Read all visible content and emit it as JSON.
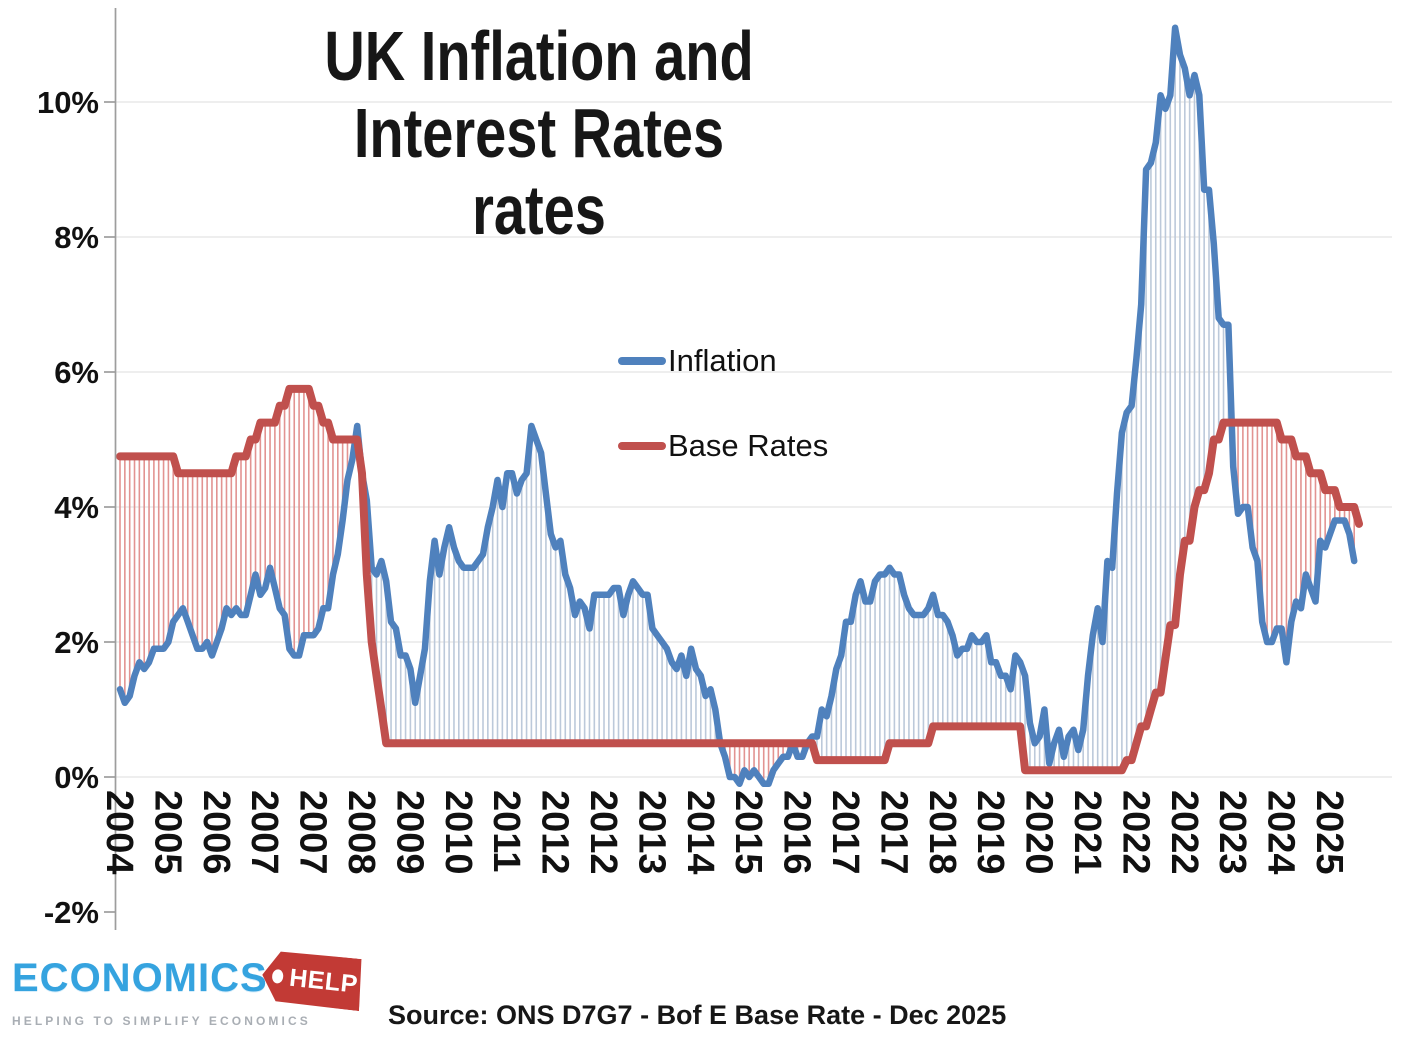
{
  "title": {
    "line1": "UK Inflation and",
    "line2": "Interest Rates rates"
  },
  "legend": [
    {
      "label": "Inflation",
      "color": "#4F81BD"
    },
    {
      "label": "Base Rates",
      "color": "#C0504D"
    }
  ],
  "source": "Source: ONS D7G7 - Bof E Base Rate - Dec 2025",
  "logo": {
    "brand": "ECONOMICS",
    "tag": "HELP",
    "tagline": "HELPING TO SIMPLIFY ECONOMICS"
  },
  "axes": {
    "y_ticks": [
      "10%",
      "8%",
      "6%",
      "4%",
      "2%",
      "0%",
      "-2%"
    ],
    "x_ticks": [
      "2004",
      "2005",
      "2006",
      "2007",
      "2007",
      "2008",
      "2009",
      "2010",
      "2011",
      "2012",
      "2012",
      "2013",
      "2014",
      "2015",
      "2016",
      "2017",
      "2017",
      "2018",
      "2019",
      "2020",
      "2021",
      "2022",
      "2022",
      "2023",
      "2024",
      "2025"
    ]
  },
  "chart_data": {
    "type": "line",
    "title": "UK Inflation and Interest Rates rates",
    "xlabel": "",
    "ylabel": "",
    "frequency": "monthly",
    "start_month": "2004-08",
    "end_month": "2025-12",
    "x_tick_interval_months": 10,
    "x_tick_labels": [
      "2004",
      "2005",
      "2006",
      "2007",
      "2007",
      "2008",
      "2009",
      "2010",
      "2011",
      "2012",
      "2012",
      "2013",
      "2014",
      "2015",
      "2016",
      "2017",
      "2017",
      "2018",
      "2019",
      "2020",
      "2021",
      "2022",
      "2022",
      "2023",
      "2024",
      "2025"
    ],
    "y_tick_values": [
      10,
      8,
      6,
      4,
      2,
      0,
      -2
    ],
    "gridline_values": [
      0,
      2,
      4,
      6,
      8,
      10
    ],
    "ylim": [
      -2,
      11.5
    ],
    "grid": true,
    "legend_position": "center-right",
    "fill_between": {
      "inflation_above_color": "#bcc9da",
      "base_above_color": "#e29391"
    },
    "series": [
      {
        "name": "Inflation",
        "color": "#4F81BD",
        "values": [
          1.3,
          1.1,
          1.2,
          1.5,
          1.7,
          1.6,
          1.7,
          1.9,
          1.9,
          1.9,
          2.0,
          2.3,
          2.4,
          2.5,
          2.3,
          2.1,
          1.9,
          1.9,
          2.0,
          1.8,
          2.0,
          2.2,
          2.5,
          2.4,
          2.5,
          2.4,
          2.4,
          2.7,
          3.0,
          2.7,
          2.8,
          3.1,
          2.8,
          2.5,
          2.4,
          1.9,
          1.8,
          1.8,
          2.1,
          2.1,
          2.1,
          2.2,
          2.5,
          2.5,
          3.0,
          3.3,
          3.8,
          4.4,
          4.7,
          5.2,
          4.5,
          4.1,
          3.1,
          3.0,
          3.2,
          2.9,
          2.3,
          2.2,
          1.8,
          1.8,
          1.6,
          1.1,
          1.5,
          1.9,
          2.9,
          3.5,
          3.0,
          3.4,
          3.7,
          3.4,
          3.2,
          3.1,
          3.1,
          3.1,
          3.2,
          3.3,
          3.7,
          4.0,
          4.4,
          4.0,
          4.5,
          4.5,
          4.2,
          4.4,
          4.5,
          5.2,
          5.0,
          4.8,
          4.2,
          3.6,
          3.4,
          3.5,
          3.0,
          2.8,
          2.4,
          2.6,
          2.5,
          2.2,
          2.7,
          2.7,
          2.7,
          2.7,
          2.8,
          2.8,
          2.4,
          2.7,
          2.9,
          2.8,
          2.7,
          2.7,
          2.2,
          2.1,
          2.0,
          1.9,
          1.7,
          1.6,
          1.8,
          1.5,
          1.9,
          1.6,
          1.5,
          1.2,
          1.3,
          1.0,
          0.5,
          0.3,
          0.0,
          0.0,
          -0.1,
          0.1,
          0.0,
          0.1,
          0.0,
          -0.1,
          -0.1,
          0.1,
          0.2,
          0.3,
          0.3,
          0.5,
          0.3,
          0.3,
          0.5,
          0.6,
          0.6,
          1.0,
          0.9,
          1.2,
          1.6,
          1.8,
          2.3,
          2.3,
          2.7,
          2.9,
          2.6,
          2.6,
          2.9,
          3.0,
          3.0,
          3.1,
          3.0,
          3.0,
          2.7,
          2.5,
          2.4,
          2.4,
          2.4,
          2.5,
          2.7,
          2.4,
          2.4,
          2.3,
          2.1,
          1.8,
          1.9,
          1.9,
          2.1,
          2.0,
          2.0,
          2.1,
          1.7,
          1.7,
          1.5,
          1.5,
          1.3,
          1.8,
          1.7,
          1.5,
          0.8,
          0.5,
          0.6,
          1.0,
          0.2,
          0.5,
          0.7,
          0.3,
          0.6,
          0.7,
          0.4,
          0.7,
          1.5,
          2.1,
          2.5,
          2.0,
          3.2,
          3.1,
          4.2,
          5.1,
          5.4,
          5.5,
          6.2,
          7.0,
          9.0,
          9.1,
          9.4,
          10.1,
          9.9,
          10.1,
          11.1,
          10.7,
          10.5,
          10.1,
          10.4,
          10.1,
          8.7,
          8.7,
          7.9,
          6.8,
          6.7,
          6.7,
          4.6,
          3.9,
          4.0,
          4.0,
          3.4,
          3.2,
          2.3,
          2.0,
          2.0,
          2.2,
          2.2,
          1.7,
          2.3,
          2.6,
          2.5,
          3.0,
          2.8,
          2.6,
          3.5,
          3.4,
          3.6,
          3.8,
          3.8,
          3.8,
          3.6,
          3.2
        ]
      },
      {
        "name": "Base Rates",
        "color": "#C0504D",
        "values": [
          4.75,
          4.75,
          4.75,
          4.75,
          4.75,
          4.75,
          4.75,
          4.75,
          4.75,
          4.75,
          4.75,
          4.75,
          4.5,
          4.5,
          4.5,
          4.5,
          4.5,
          4.5,
          4.5,
          4.5,
          4.5,
          4.5,
          4.5,
          4.5,
          4.75,
          4.75,
          4.75,
          5.0,
          5.0,
          5.25,
          5.25,
          5.25,
          5.25,
          5.5,
          5.5,
          5.75,
          5.75,
          5.75,
          5.75,
          5.75,
          5.5,
          5.5,
          5.25,
          5.25,
          5.0,
          5.0,
          5.0,
          5.0,
          5.0,
          5.0,
          4.5,
          3.0,
          2.0,
          1.5,
          1.0,
          0.5,
          0.5,
          0.5,
          0.5,
          0.5,
          0.5,
          0.5,
          0.5,
          0.5,
          0.5,
          0.5,
          0.5,
          0.5,
          0.5,
          0.5,
          0.5,
          0.5,
          0.5,
          0.5,
          0.5,
          0.5,
          0.5,
          0.5,
          0.5,
          0.5,
          0.5,
          0.5,
          0.5,
          0.5,
          0.5,
          0.5,
          0.5,
          0.5,
          0.5,
          0.5,
          0.5,
          0.5,
          0.5,
          0.5,
          0.5,
          0.5,
          0.5,
          0.5,
          0.5,
          0.5,
          0.5,
          0.5,
          0.5,
          0.5,
          0.5,
          0.5,
          0.5,
          0.5,
          0.5,
          0.5,
          0.5,
          0.5,
          0.5,
          0.5,
          0.5,
          0.5,
          0.5,
          0.5,
          0.5,
          0.5,
          0.5,
          0.5,
          0.5,
          0.5,
          0.5,
          0.5,
          0.5,
          0.5,
          0.5,
          0.5,
          0.5,
          0.5,
          0.5,
          0.5,
          0.5,
          0.5,
          0.5,
          0.5,
          0.5,
          0.5,
          0.5,
          0.5,
          0.5,
          0.5,
          0.25,
          0.25,
          0.25,
          0.25,
          0.25,
          0.25,
          0.25,
          0.25,
          0.25,
          0.25,
          0.25,
          0.25,
          0.25,
          0.25,
          0.25,
          0.5,
          0.5,
          0.5,
          0.5,
          0.5,
          0.5,
          0.5,
          0.5,
          0.5,
          0.75,
          0.75,
          0.75,
          0.75,
          0.75,
          0.75,
          0.75,
          0.75,
          0.75,
          0.75,
          0.75,
          0.75,
          0.75,
          0.75,
          0.75,
          0.75,
          0.75,
          0.75,
          0.75,
          0.1,
          0.1,
          0.1,
          0.1,
          0.1,
          0.1,
          0.1,
          0.1,
          0.1,
          0.1,
          0.1,
          0.1,
          0.1,
          0.1,
          0.1,
          0.1,
          0.1,
          0.1,
          0.1,
          0.1,
          0.1,
          0.25,
          0.25,
          0.5,
          0.75,
          0.75,
          1.0,
          1.25,
          1.25,
          1.75,
          2.25,
          2.25,
          3.0,
          3.5,
          3.5,
          4.0,
          4.25,
          4.25,
          4.5,
          5.0,
          5.0,
          5.25,
          5.25,
          5.25,
          5.25,
          5.25,
          5.25,
          5.25,
          5.25,
          5.25,
          5.25,
          5.25,
          5.25,
          5.0,
          5.0,
          5.0,
          4.75,
          4.75,
          4.75,
          4.5,
          4.5,
          4.5,
          4.25,
          4.25,
          4.25,
          4.0,
          4.0,
          4.0,
          4.0,
          3.75
        ]
      }
    ]
  }
}
